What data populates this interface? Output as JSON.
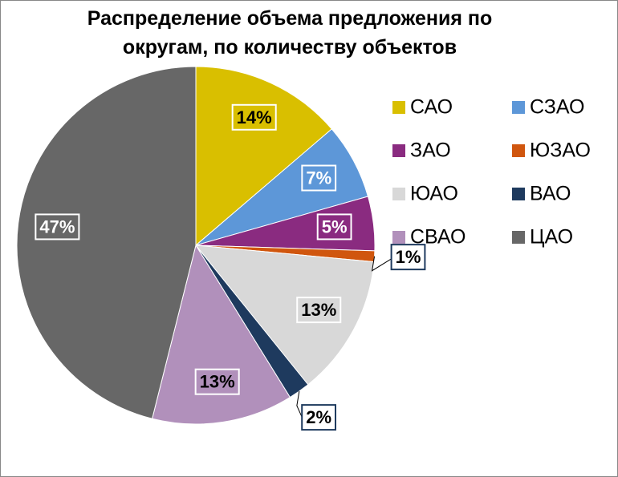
{
  "chart_data": {
    "type": "pie",
    "title": "Распределение объема предложения по округам, по количеству объектов",
    "categories": [
      "САО",
      "СЗАО",
      "ЗАО",
      "ЮЗАО",
      "ЮАО",
      "ВАО",
      "СВАО",
      "ЦАО"
    ],
    "values": [
      14,
      7,
      5,
      1,
      13,
      2,
      13,
      47
    ],
    "value_labels": [
      "14%",
      "7%",
      "5%",
      "1%",
      "13%",
      "2%",
      "13%",
      "47%"
    ],
    "colors": [
      "#d9bf00",
      "#5d97d8",
      "#8a2b80",
      "#d0560e",
      "#d8d8d8",
      "#1e3a5e",
      "#b190bb",
      "#676767"
    ]
  }
}
